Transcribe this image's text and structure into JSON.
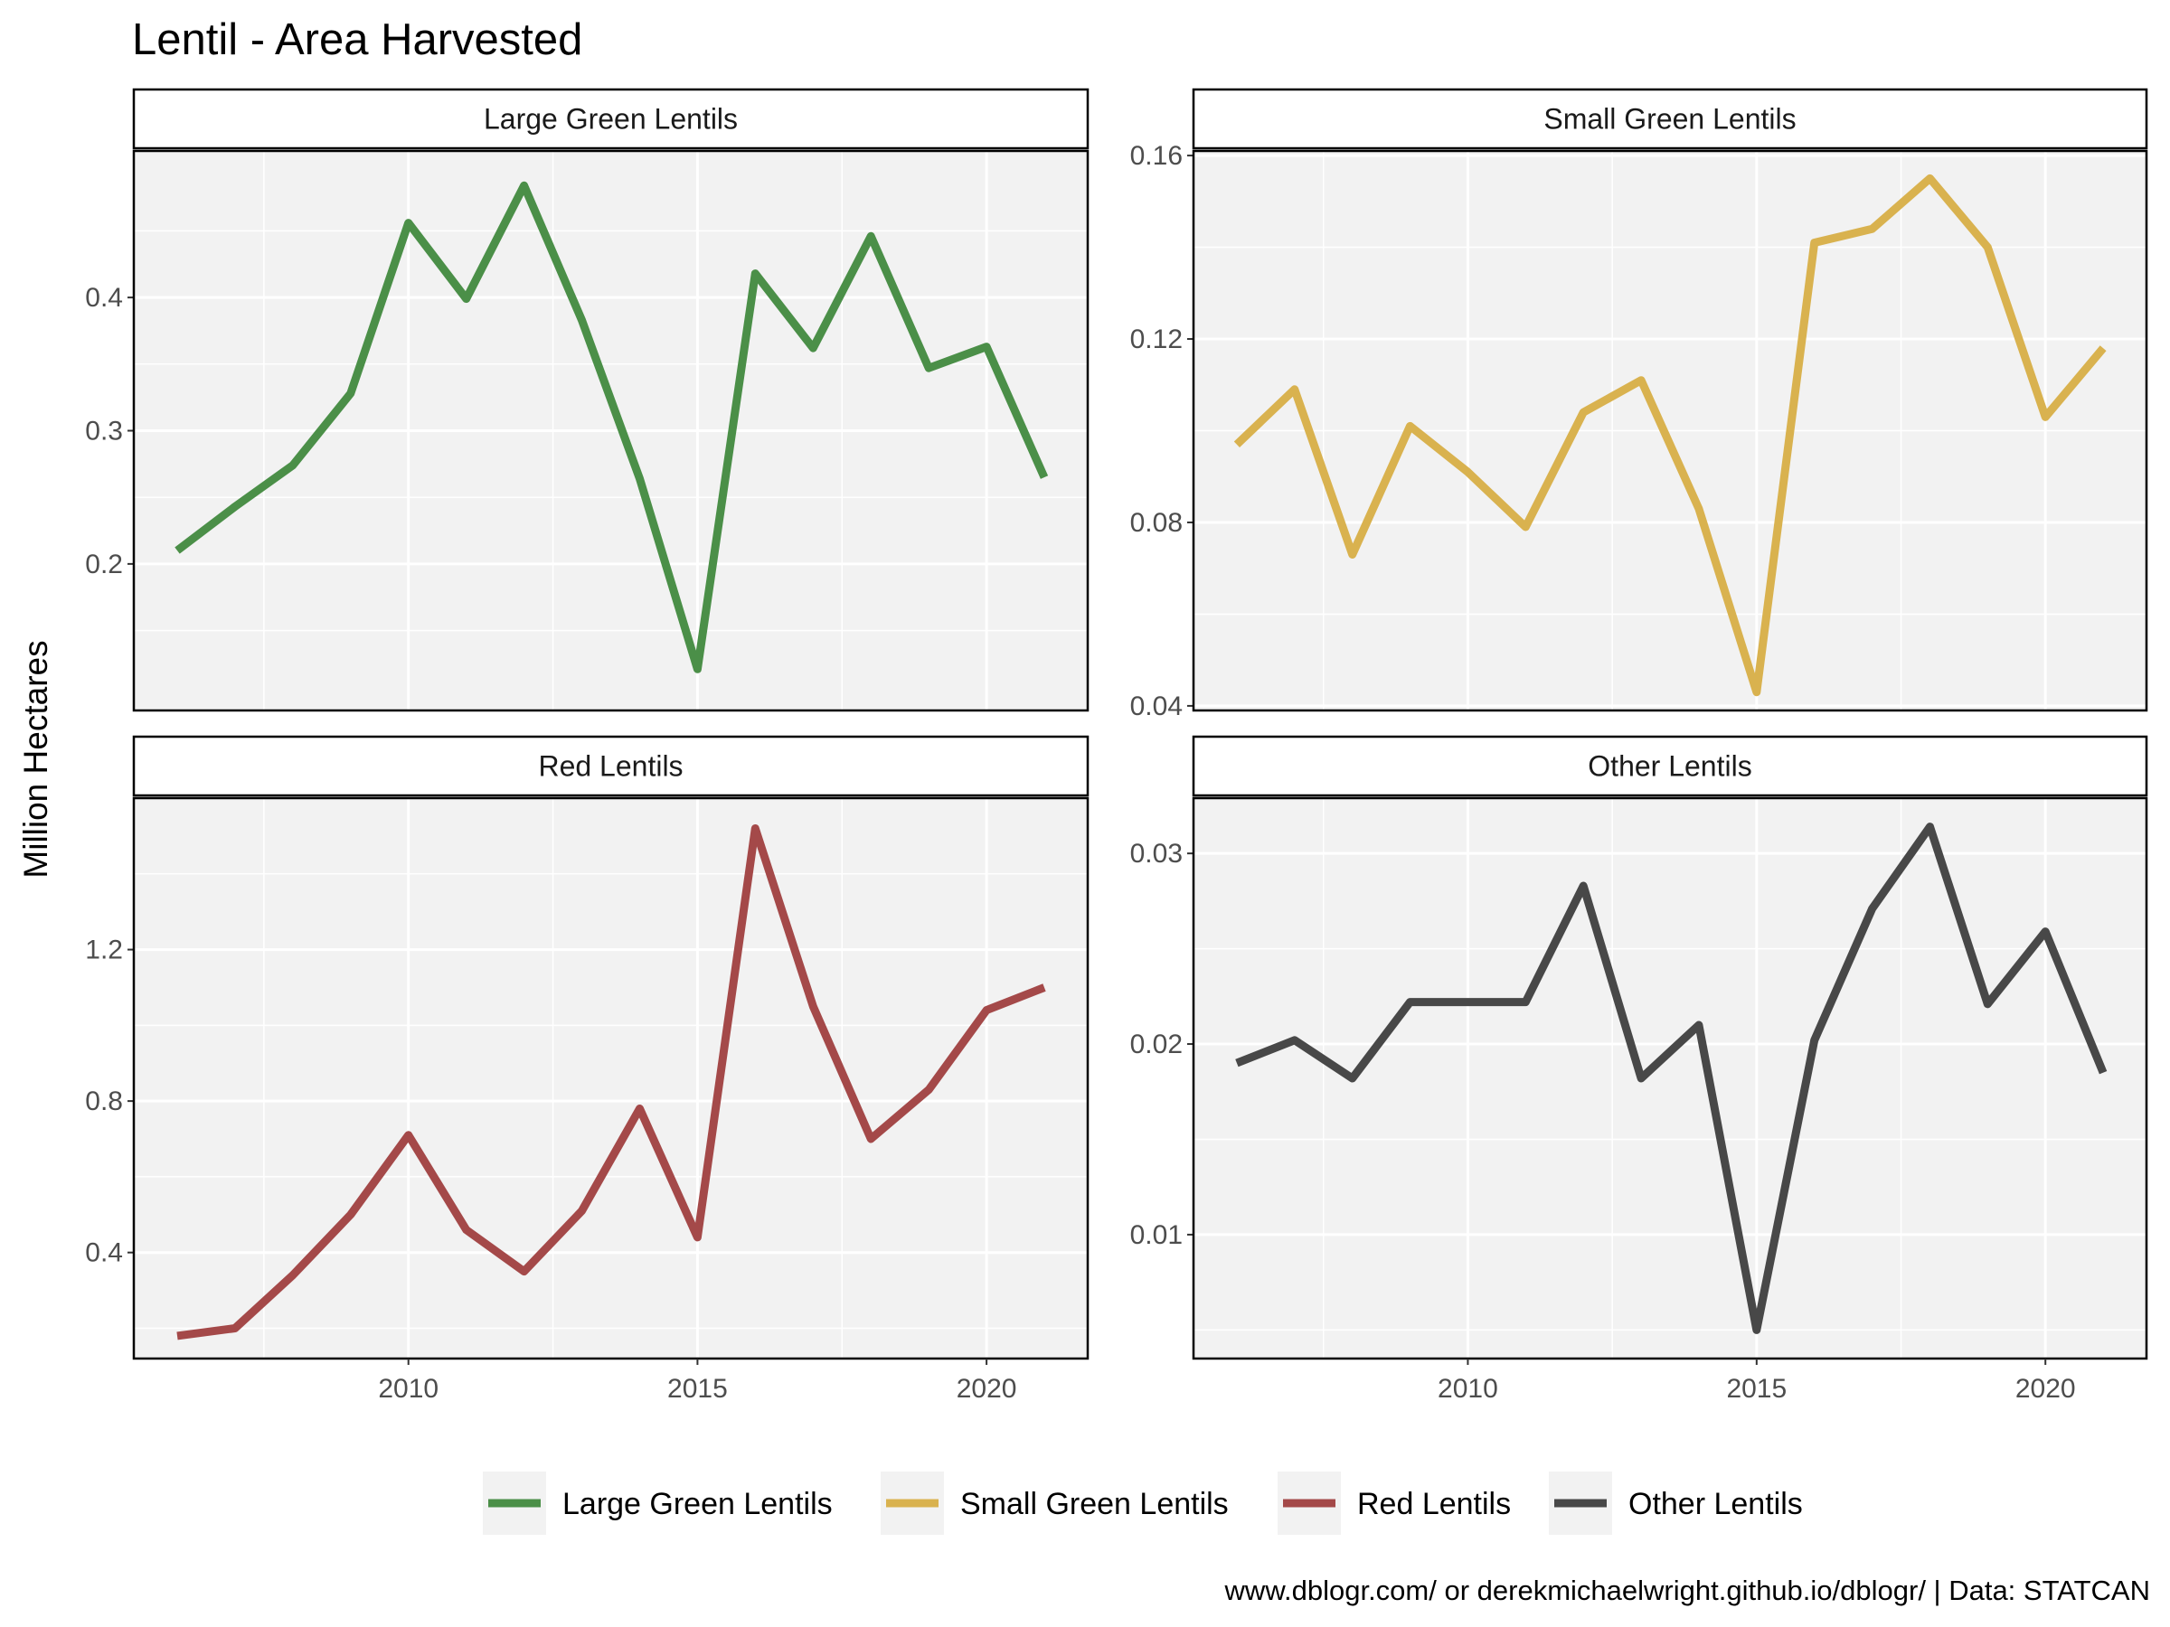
{
  "chart_data": {
    "type": "line",
    "title": "Lentil - Area Harvested",
    "ylabel": "Million Hectares",
    "xlabel": "",
    "caption": "www.dblogr.com/ or derekmichaelwright.github.io/dblogr/ | Data: STATCAN",
    "legend_position": "bottom",
    "grid": true,
    "x_ticks": [
      2010,
      2015,
      2020
    ],
    "panels": [
      {
        "name": "Large Green Lentils",
        "color": "#4b8f48",
        "x": [
          2006,
          2007,
          2008,
          2009,
          2010,
          2011,
          2012,
          2013,
          2014,
          2015,
          2016,
          2017,
          2018,
          2019,
          2020,
          2021
        ],
        "values": [
          0.21,
          0.243,
          0.274,
          0.328,
          0.456,
          0.399,
          0.484,
          0.383,
          0.264,
          0.121,
          0.418,
          0.362,
          0.446,
          0.347,
          0.363,
          0.265
        ],
        "ylim": [
          0.09,
          0.51
        ],
        "y_ticks": [
          0.2,
          0.3,
          0.4
        ],
        "y_tick_labels": [
          "0.2",
          "0.3",
          "0.4"
        ]
      },
      {
        "name": "Small Green Lentils",
        "color": "#d9b24f",
        "x": [
          2006,
          2007,
          2008,
          2009,
          2010,
          2011,
          2012,
          2013,
          2014,
          2015,
          2016,
          2017,
          2018,
          2019,
          2020,
          2021
        ],
        "values": [
          0.097,
          0.109,
          0.073,
          0.101,
          0.091,
          0.079,
          0.104,
          0.111,
          0.083,
          0.043,
          0.141,
          0.144,
          0.155,
          0.14,
          0.103,
          0.118
        ],
        "ylim": [
          0.039,
          0.161
        ],
        "y_ticks": [
          0.04,
          0.08,
          0.12,
          0.16
        ],
        "y_tick_labels": [
          "0.04",
          "0.08",
          "0.12",
          "0.16"
        ]
      },
      {
        "name": "Red Lentils",
        "color": "#a44949",
        "x": [
          2006,
          2007,
          2008,
          2009,
          2010,
          2011,
          2012,
          2013,
          2014,
          2015,
          2016,
          2017,
          2018,
          2019,
          2020,
          2021
        ],
        "values": [
          0.18,
          0.2,
          0.34,
          0.5,
          0.71,
          0.46,
          0.35,
          0.51,
          0.78,
          0.44,
          1.52,
          1.05,
          0.7,
          0.83,
          1.04,
          1.1
        ],
        "ylim": [
          0.12,
          1.6
        ],
        "y_ticks": [
          0.4,
          0.8,
          1.2
        ],
        "y_tick_labels": [
          "0.4",
          "0.8",
          "1.2"
        ]
      },
      {
        "name": "Other Lentils",
        "color": "#484848",
        "x": [
          2006,
          2007,
          2008,
          2009,
          2010,
          2011,
          2012,
          2013,
          2014,
          2015,
          2016,
          2017,
          2018,
          2019,
          2020,
          2021
        ],
        "values": [
          0.019,
          0.0202,
          0.0182,
          0.0222,
          0.0222,
          0.0222,
          0.0283,
          0.0182,
          0.021,
          0.005,
          0.0202,
          0.0271,
          0.0314,
          0.0221,
          0.0259,
          0.0185
        ],
        "ylim": [
          0.0035,
          0.0329
        ],
        "y_ticks": [
          0.01,
          0.02,
          0.03
        ],
        "y_tick_labels": [
          "0.01",
          "0.02",
          "0.03"
        ]
      }
    ],
    "legend": [
      {
        "label": "Large Green Lentils",
        "color": "#4b8f48"
      },
      {
        "label": "Small Green Lentils",
        "color": "#d9b24f"
      },
      {
        "label": "Red Lentils",
        "color": "#a44949"
      },
      {
        "label": "Other Lentils",
        "color": "#484848"
      }
    ]
  }
}
